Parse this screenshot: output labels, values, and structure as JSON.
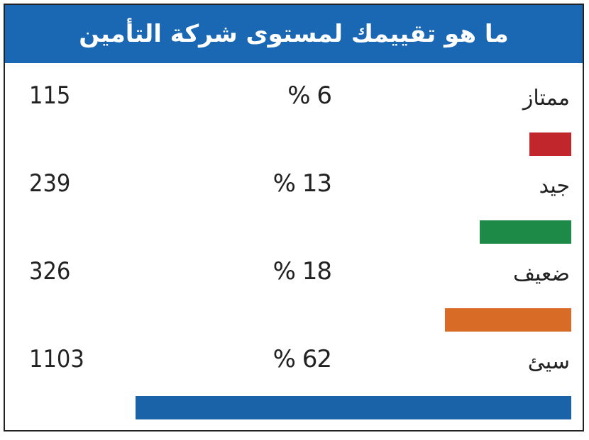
{
  "title": "ما هو تقييمك لمستوى شركة التأمين",
  "colors": {
    "header": "#1a67b3",
    "header_text": "#ffffff",
    "border": "#222222"
  },
  "chart_data": {
    "type": "bar",
    "orientation": "horizontal",
    "title": "ما هو تقييمك لمستوى شركة التأمين",
    "categories": [
      "ممتاز",
      "جيد",
      "ضعيف",
      "سيئ"
    ],
    "values": [
      6,
      13,
      18,
      62
    ],
    "percent_labels": [
      "% 6",
      "% 13",
      "% 18",
      "% 62"
    ],
    "counts": [
      "115",
      "239",
      "326",
      "1103"
    ],
    "bar_colors": [
      "#c0262b",
      "#1e8a47",
      "#d86b25",
      "#1a63a8"
    ],
    "xlim": [
      0,
      62
    ],
    "grid": false
  }
}
